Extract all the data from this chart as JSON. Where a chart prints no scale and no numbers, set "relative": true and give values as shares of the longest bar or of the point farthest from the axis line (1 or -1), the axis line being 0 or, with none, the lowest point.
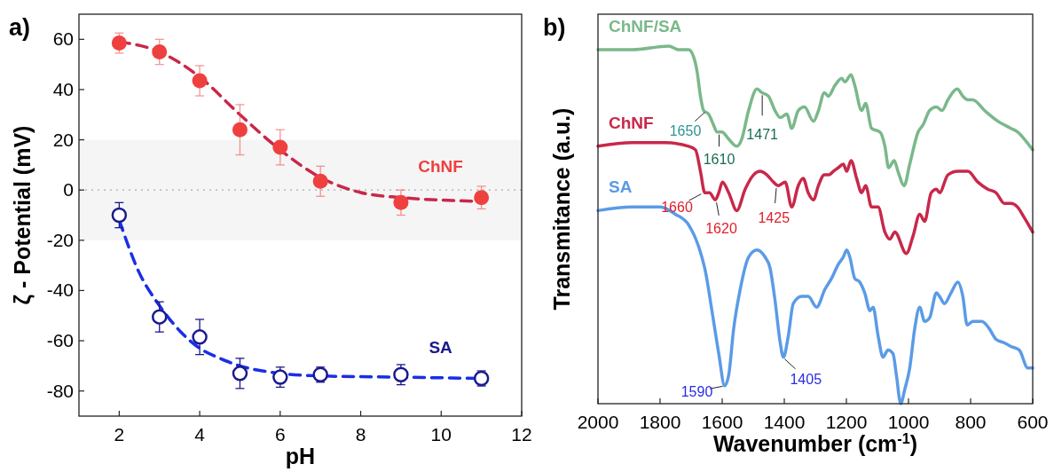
{
  "chart_data": [
    {
      "type": "scatter",
      "title": "a)",
      "xlabel": "pH",
      "ylabel": "ζ - Potential (mV)",
      "xlim": [
        1,
        12
      ],
      "xticks": [
        2,
        4,
        6,
        8,
        10,
        12
      ],
      "ylim": [
        -90,
        70
      ],
      "yticks": [
        -80,
        -60,
        -40,
        -20,
        0,
        20,
        40,
        60
      ],
      "grid": false,
      "legend": false,
      "bands": [
        {
          "axis": "y",
          "from": -20,
          "to": 20,
          "color": "#f5f5f5"
        }
      ],
      "ref_lines": [
        {
          "axis": "y",
          "value": 0,
          "color": "#aaaaaa",
          "line_style": "dotted"
        }
      ],
      "series": [
        {
          "type": "line",
          "color": "#c8284a",
          "line_style": "dashed",
          "marker": "none",
          "x": [
            2,
            3,
            4,
            5,
            6,
            7,
            8,
            9,
            10,
            11
          ],
          "values": [
            59,
            55,
            45,
            30,
            16,
            5,
            -1,
            -3,
            -4,
            -4.5
          ]
        },
        {
          "type": "line",
          "color": "#1a2ee8",
          "line_style": "dashed",
          "marker": "none",
          "x": [
            2,
            2.5,
            3,
            3.5,
            4,
            4.5,
            5,
            6,
            7,
            9,
            11
          ],
          "values": [
            -12,
            -33,
            -46,
            -56,
            -63,
            -67,
            -70,
            -73,
            -74,
            -74.5,
            -75
          ]
        },
        {
          "name": "ChNF",
          "color": "#ef4040",
          "marker": "circle",
          "x": [
            2,
            3,
            4,
            5,
            6,
            7,
            9,
            11
          ],
          "values": [
            58.5,
            55,
            43.5,
            24,
            17,
            3.5,
            -5,
            -3
          ],
          "errors": [
            4,
            5,
            6,
            10,
            7,
            6,
            5,
            4.5
          ]
        },
        {
          "name": "SA",
          "color": "#1a1a8c",
          "marker": "circle",
          "x": [
            2,
            3,
            4,
            5,
            6,
            7,
            9,
            11
          ],
          "values": [
            -10,
            -50.5,
            -58.5,
            -73,
            -74.5,
            -73.5,
            -73.5,
            -75
          ],
          "errors": [
            5,
            6,
            7,
            6,
            4,
            3,
            4,
            3
          ]
        }
      ]
    },
    {
      "type": "line",
      "title": "b)",
      "xlabel": "Wavenumber (cm$^{-1}$)",
      "ylabel": "Transmitance (a.u.)",
      "relative": true,
      "xlim": [
        2000,
        600
      ],
      "xticks": [
        2000,
        1800,
        1600,
        1400,
        1200,
        1000,
        800,
        600
      ],
      "tick_labels": "x",
      "legend": false,
      "annotations": [
        {
          "text": "1650",
          "x": 1650,
          "y": 0.82
        },
        {
          "text": "1610",
          "x": 1610,
          "y": 0.76
        },
        {
          "text": "1471",
          "x": 1471,
          "y": 0.87
        },
        {
          "text": "1660",
          "x": 1660,
          "y": 0.59
        },
        {
          "text": "1620",
          "x": 1620,
          "y": 0.57
        },
        {
          "text": "1425",
          "x": 1425,
          "y": 0.61
        },
        {
          "text": "1590",
          "x": 1590,
          "y": 0.05
        },
        {
          "text": "1405",
          "x": 1405,
          "y": 0.13
        }
      ],
      "series": [
        {
          "name": "ChNF/SA",
          "color": "#7ab88a",
          "x": [
            2000,
            1890,
            1772,
            1740,
            1708,
            1692,
            1681,
            1670,
            1660,
            1644,
            1628,
            1617,
            1601,
            1579,
            1553,
            1537,
            1515,
            1488,
            1472,
            1451,
            1430,
            1413,
            1392,
            1376,
            1355,
            1335,
            1306,
            1290,
            1271,
            1258,
            1237,
            1215,
            1205,
            1185,
            1173,
            1151,
            1138,
            1119,
            1092,
            1076,
            1064,
            1046,
            1034,
            1014,
            996,
            969,
            953,
            932,
            910,
            892,
            873,
            843,
            825,
            809,
            793,
            755,
            712,
            670,
            649,
            627,
            600
          ],
          "values": [
            0.99,
            0.99,
            1.0,
            0.99,
            0.99,
            0.97,
            0.93,
            0.86,
            0.82,
            0.81,
            0.78,
            0.76,
            0.76,
            0.74,
            0.72,
            0.74,
            0.82,
            0.88,
            0.87,
            0.86,
            0.82,
            0.8,
            0.81,
            0.77,
            0.82,
            0.83,
            0.79,
            0.82,
            0.87,
            0.86,
            0.89,
            0.91,
            0.9,
            0.92,
            0.89,
            0.82,
            0.84,
            0.77,
            0.76,
            0.72,
            0.66,
            0.68,
            0.65,
            0.61,
            0.67,
            0.76,
            0.78,
            0.82,
            0.83,
            0.82,
            0.85,
            0.88,
            0.86,
            0.85,
            0.85,
            0.82,
            0.79,
            0.77,
            0.76,
            0.74,
            0.71
          ]
        },
        {
          "name": "ChNF",
          "color": "#c8284a",
          "x": [
            2000,
            1890,
            1783,
            1708,
            1686,
            1670,
            1656,
            1641,
            1622,
            1611,
            1599,
            1579,
            1553,
            1526,
            1499,
            1478,
            1456,
            1435,
            1419,
            1397,
            1376,
            1355,
            1339,
            1323,
            1306,
            1290,
            1271,
            1256,
            1242,
            1226,
            1210,
            1199,
            1185,
            1167,
            1151,
            1138,
            1119,
            1098,
            1076,
            1060,
            1044,
            1007,
            985,
            964,
            948,
            927,
            910,
            900,
            873,
            841,
            809,
            777,
            745,
            718,
            691,
            670,
            649,
            627,
            600
          ],
          "values": [
            0.72,
            0.73,
            0.73,
            0.72,
            0.71,
            0.65,
            0.59,
            0.59,
            0.57,
            0.59,
            0.62,
            0.59,
            0.54,
            0.6,
            0.64,
            0.65,
            0.64,
            0.62,
            0.61,
            0.62,
            0.55,
            0.61,
            0.63,
            0.59,
            0.57,
            0.61,
            0.64,
            0.64,
            0.65,
            0.66,
            0.67,
            0.65,
            0.68,
            0.63,
            0.59,
            0.61,
            0.55,
            0.55,
            0.48,
            0.46,
            0.48,
            0.42,
            0.47,
            0.53,
            0.51,
            0.59,
            0.6,
            0.59,
            0.64,
            0.65,
            0.65,
            0.62,
            0.6,
            0.59,
            0.56,
            0.56,
            0.55,
            0.52,
            0.48
          ]
        },
        {
          "name": "SA",
          "color": "#5b9be6",
          "x": [
            2000,
            1890,
            1799,
            1751,
            1708,
            1676,
            1654,
            1633,
            1611,
            1592,
            1579,
            1563,
            1542,
            1515,
            1488,
            1462,
            1446,
            1430,
            1413,
            1403,
            1387,
            1371,
            1344,
            1323,
            1296,
            1269,
            1248,
            1226,
            1210,
            1199,
            1189,
            1173,
            1157,
            1141,
            1124,
            1114,
            1098,
            1082,
            1066,
            1050,
            1039,
            1025,
            1012,
            996,
            980,
            964,
            948,
            932,
            910,
            900,
            884,
            863,
            841,
            825,
            811,
            793,
            777,
            764,
            740,
            718,
            691,
            670,
            643,
            616,
            600
          ],
          "values": [
            0.54,
            0.55,
            0.55,
            0.53,
            0.5,
            0.44,
            0.37,
            0.26,
            0.14,
            0.05,
            0.08,
            0.21,
            0.32,
            0.41,
            0.43,
            0.41,
            0.38,
            0.29,
            0.17,
            0.13,
            0.19,
            0.28,
            0.3,
            0.3,
            0.27,
            0.32,
            0.35,
            0.39,
            0.41,
            0.43,
            0.41,
            0.35,
            0.34,
            0.31,
            0.26,
            0.27,
            0.19,
            0.13,
            0.15,
            0.14,
            0.08,
            0.0,
            0.04,
            0.1,
            0.21,
            0.27,
            0.23,
            0.24,
            0.31,
            0.3,
            0.28,
            0.31,
            0.34,
            0.3,
            0.22,
            0.23,
            0.23,
            0.23,
            0.21,
            0.18,
            0.17,
            0.16,
            0.15,
            0.1,
            0.1
          ]
        }
      ]
    }
  ]
}
